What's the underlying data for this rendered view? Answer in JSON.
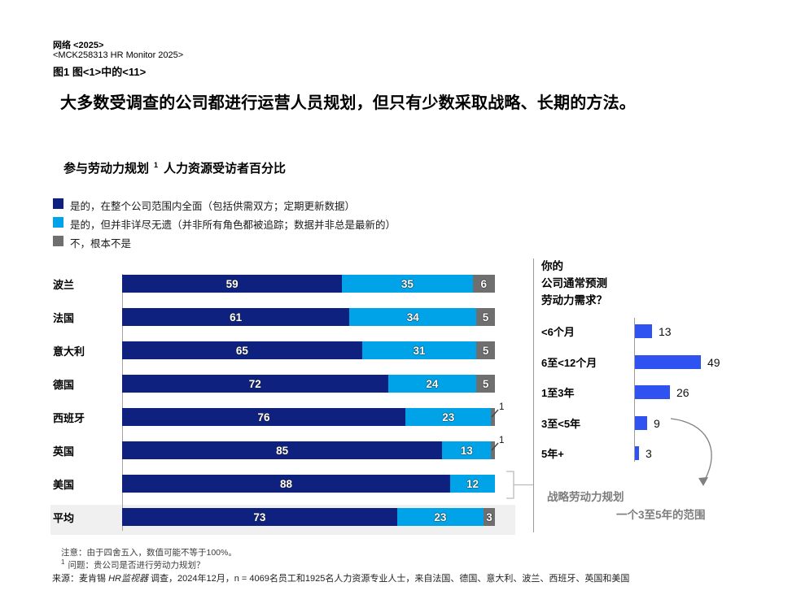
{
  "header": {
    "eyebrow_line1": "网络 <2025>",
    "eyebrow_line2": "<MCK258313 HR Monitor 2025>",
    "eyebrow_line3": "图1 图<1>中的<11>",
    "title": "大多数受调查的公司都进行运营人员规划，但只有少数采取战略、长期的方法。"
  },
  "subtitle": {
    "bold_part": "参与劳动力规划",
    "footnote_marker": "1",
    "rest_part": "人力资源受访者百分比"
  },
  "legend": {
    "items": [
      {
        "label": "是的，在整个公司范围内全面（包括供需双方；定期更新数据）",
        "color": "#0E217E"
      },
      {
        "label": "是的，但并非详尽无遗（并非所有角色都被追踪；数据并非总是最新的）",
        "color": "#00A3E8"
      },
      {
        "label": "不，根本不是",
        "color": "#6F6F6F"
      }
    ]
  },
  "chart_data": [
    {
      "type": "bar",
      "orientation": "horizontal",
      "stacked": true,
      "unit": "percent",
      "title": "参与劳动力规划¹ 人力资源受访者百分比",
      "categories": [
        "波兰",
        "法国",
        "意大利",
        "德国",
        "西班牙",
        "英国",
        "美国",
        "平均"
      ],
      "series": [
        {
          "name": "是的，在整个公司范围内全面（包括供需双方；定期更新数据）",
          "color": "#0E217E",
          "values": [
            59,
            61,
            65,
            72,
            76,
            85,
            88,
            73
          ]
        },
        {
          "name": "是的，但并非详尽无遗（并非所有角色都被追踪；数据并非总是最新的）",
          "color": "#00A3E8",
          "values": [
            35,
            34,
            31,
            24,
            23,
            13,
            12,
            23
          ]
        },
        {
          "name": "不，根本不是",
          "color": "#6F6F6F",
          "values": [
            6,
            5,
            5,
            5,
            1,
            1,
            0,
            3
          ]
        }
      ],
      "xlim": [
        0,
        100
      ],
      "legend_position": "top",
      "grid": false,
      "highlighted_category": "平均",
      "small_value_callouts": [
        {
          "category": "西班牙",
          "series": "不，根本不是",
          "value": 1
        },
        {
          "category": "英国",
          "series": "不，根本不是",
          "value": 1
        }
      ],
      "bracketed_category": "美国"
    },
    {
      "type": "bar",
      "orientation": "horizontal",
      "title": "你的公司通常预测劳动力需求？",
      "categories": [
        "<6个月",
        "6至<12个月",
        "1至3年",
        "3至<5年",
        "5年+"
      ],
      "values": [
        13,
        49,
        26,
        9,
        3
      ],
      "bar_color": "#2E53F1",
      "xlim": [
        0,
        55
      ],
      "grid": false,
      "annotation": {
        "line1": "战略劳动力规划",
        "line2": "一个3至5年的范围",
        "arrow_from_category": "3至<5年"
      }
    }
  ],
  "right_panel": {
    "question_lines": [
      "你的",
      "公司通常预测",
      "劳动力需求？"
    ],
    "strategic_note_line1": "战略劳动力规划",
    "strategic_note_line2": "一个3至5年的范围"
  },
  "footer": {
    "note": "注意：由于四舍五入，数值可能不等于100%。",
    "footnote_marker": "1",
    "footnote_text": "问题：贵公司是否进行劳动力规划？",
    "source_label": "来源：麦肯锡",
    "source_italic": "HR监视器",
    "source_rest": "调查，2024年12月，n = 4069名员工和1925名人力资源专业人士，来自法国、德国、意大利、波兰、西班牙、英国和美国"
  },
  "colors": {
    "navy": "#0E217E",
    "cyan": "#00A3E8",
    "gray_segment": "#6F6F6F",
    "royal_blue": "#2E53F1",
    "axis_gray": "#9B9B9B",
    "bracket_gray": "#BBBBBB",
    "annotation_gray": "#7D7D7D",
    "highlight_bg": "#F0F0F0"
  }
}
